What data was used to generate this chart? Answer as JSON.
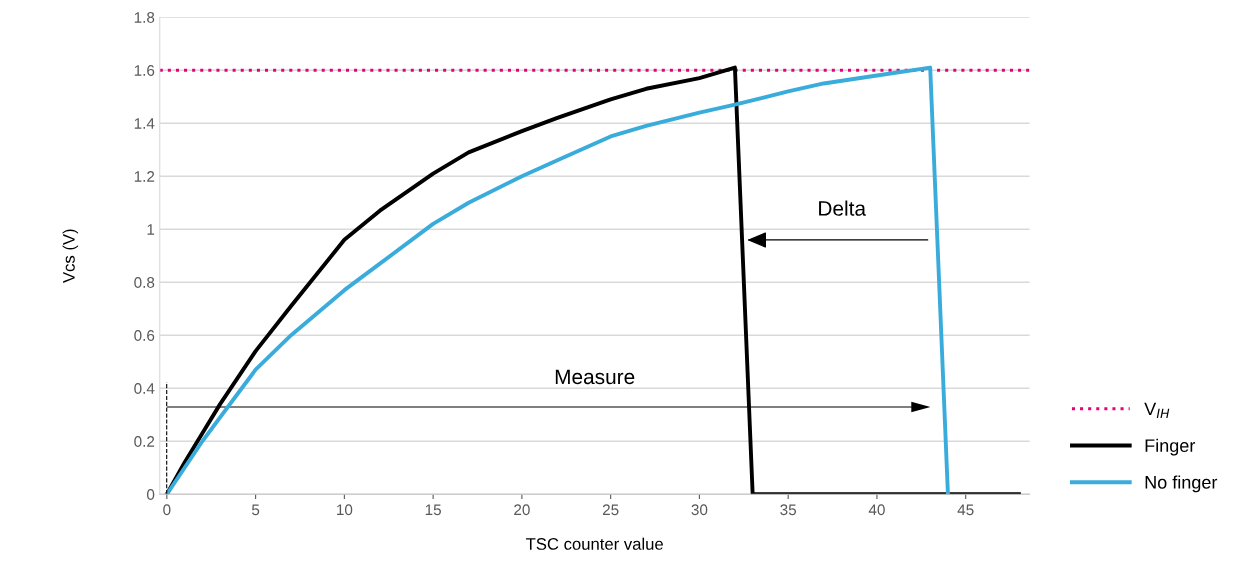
{
  "chart_data": {
    "type": "line",
    "xlabel": "TSC counter value",
    "ylabel": "Vcs (V)",
    "xlim": [
      -0.4,
      48.6
    ],
    "xticks": [
      0,
      5,
      10,
      15,
      20,
      25,
      30,
      35,
      40,
      45
    ],
    "ylim": [
      0,
      1.8
    ],
    "yticks": [
      0,
      0.2,
      0.4,
      0.6,
      0.8,
      1,
      1.2,
      1.4,
      1.6,
      1.8
    ],
    "grid": "y",
    "legend": "right",
    "line_style": "solid",
    "ref_lines": [
      {
        "axis": "y",
        "value": 1.6,
        "label": "V$_{IH}$",
        "color": "#e6007e",
        "line_style": "dotted"
      }
    ],
    "series": [
      {
        "name": "Finger",
        "color": "#000000",
        "x": [
          0,
          1,
          2,
          3,
          4,
          5,
          7,
          10,
          12,
          15,
          17,
          20,
          22,
          25,
          27,
          30,
          32,
          33,
          48
        ],
        "values": [
          0,
          0.12,
          0.23,
          0.34,
          0.44,
          0.54,
          0.71,
          0.96,
          1.07,
          1.21,
          1.29,
          1.37,
          1.42,
          1.49,
          1.53,
          1.57,
          1.61,
          0,
          0
        ]
      },
      {
        "name": "No finger",
        "color": "#3aacdc",
        "x": [
          0,
          1,
          2,
          3,
          4,
          5,
          7,
          10,
          12,
          15,
          17,
          20,
          22,
          25,
          27,
          30,
          32,
          35,
          37,
          40,
          43,
          44
        ],
        "values": [
          0,
          0.1,
          0.2,
          0.29,
          0.38,
          0.47,
          0.6,
          0.77,
          0.87,
          1.02,
          1.1,
          1.2,
          1.26,
          1.35,
          1.39,
          1.44,
          1.47,
          1.52,
          1.55,
          1.58,
          1.61,
          0
        ]
      }
    ],
    "annotations": [
      "Delta",
      "Measure"
    ]
  }
}
